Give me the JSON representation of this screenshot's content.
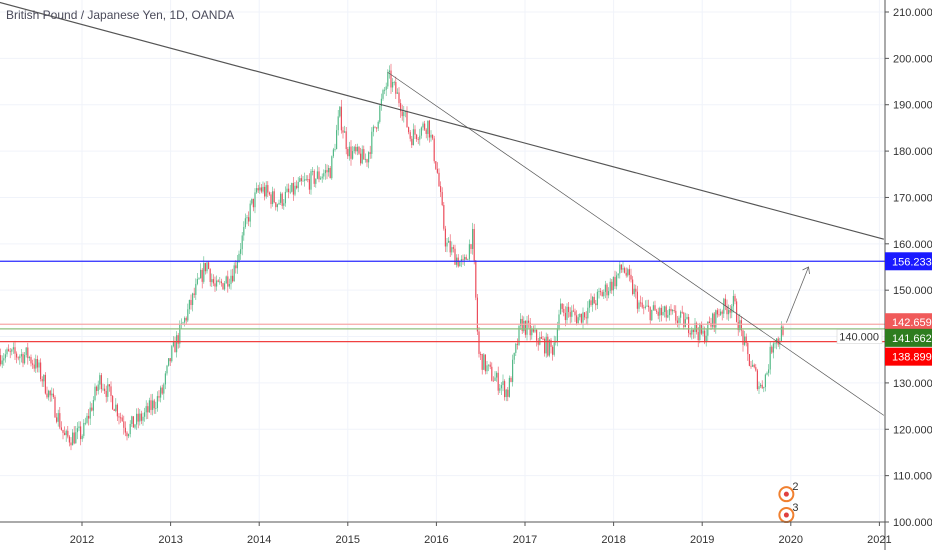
{
  "header": {
    "title": "British Pound / Japanese Yen, 1D, OANDA"
  },
  "chart_data": {
    "type": "candlestick",
    "title": "British Pound / Japanese Yen, 1D, OANDA",
    "ylim": [
      100,
      212
    ],
    "xlim": [
      2011.38,
      2021.05
    ],
    "y_ticks": [
      "100.000",
      "110.000",
      "120.000",
      "130.000",
      "140.000",
      "150.000",
      "160.000",
      "170.000",
      "180.000",
      "190.000",
      "200.000",
      "210.000"
    ],
    "x_ticks": [
      "2012",
      "2013",
      "2014",
      "2015",
      "2016",
      "2017",
      "2018",
      "2019",
      "2020",
      "2021"
    ],
    "grid": true,
    "approx_closes": [
      [
        2011.38,
        136
      ],
      [
        2011.5,
        133
      ],
      [
        2011.7,
        124
      ],
      [
        2011.8,
        118
      ],
      [
        2012.0,
        119
      ],
      [
        2012.2,
        131
      ],
      [
        2012.4,
        124
      ],
      [
        2012.5,
        120
      ],
      [
        2012.7,
        123
      ],
      [
        2012.9,
        128
      ],
      [
        2013.0,
        136
      ],
      [
        2013.2,
        146
      ],
      [
        2013.4,
        156
      ],
      [
        2013.5,
        150
      ],
      [
        2013.7,
        154
      ],
      [
        2013.9,
        168
      ],
      [
        2014.0,
        172
      ],
      [
        2014.2,
        169
      ],
      [
        2014.5,
        173
      ],
      [
        2014.8,
        176
      ],
      [
        2014.9,
        188
      ],
      [
        2015.0,
        180
      ],
      [
        2015.2,
        178
      ],
      [
        2015.45,
        196
      ],
      [
        2015.6,
        190
      ],
      [
        2015.7,
        183
      ],
      [
        2015.9,
        186
      ],
      [
        2016.0,
        176
      ],
      [
        2016.1,
        160
      ],
      [
        2016.3,
        155
      ],
      [
        2016.4,
        162
      ],
      [
        2016.47,
        136
      ],
      [
        2016.6,
        132
      ],
      [
        2016.8,
        128
      ],
      [
        2016.95,
        143
      ],
      [
        2017.1,
        140
      ],
      [
        2017.3,
        137
      ],
      [
        2017.4,
        146
      ],
      [
        2017.6,
        144
      ],
      [
        2017.8,
        148
      ],
      [
        2018.0,
        152
      ],
      [
        2018.1,
        155
      ],
      [
        2018.3,
        146
      ],
      [
        2018.5,
        145
      ],
      [
        2018.7,
        144
      ],
      [
        2018.9,
        142
      ],
      [
        2019.0,
        140
      ],
      [
        2019.2,
        146
      ],
      [
        2019.35,
        147
      ],
      [
        2019.5,
        136
      ],
      [
        2019.65,
        129
      ],
      [
        2019.72,
        132
      ],
      [
        2019.8,
        140
      ],
      [
        2019.85,
        139
      ],
      [
        2019.92,
        142.7
      ]
    ],
    "horizontal_levels": [
      {
        "label": "156.233",
        "value": 156.233,
        "color": "#2a2aff",
        "label_bg": "#1a1aff"
      },
      {
        "label": "142.659",
        "value": 142.659,
        "color": "#f7a8a8",
        "label_bg": "#f05a5a"
      },
      {
        "label": "141.662",
        "value": 141.662,
        "color": "#8fbf7f",
        "label_bg": "#2e7d1f"
      },
      {
        "label": "138.899",
        "value": 138.899,
        "color": "#f04040",
        "label_bg": "#ff0000"
      }
    ],
    "trendlines": [
      {
        "from": [
          2010.3,
          216
        ],
        "to": [
          2021.05,
          161
        ]
      },
      {
        "from": [
          2015.45,
          197
        ],
        "to": [
          2021.05,
          123
        ]
      }
    ],
    "projection_arrow": {
      "from": [
        2019.95,
        143
      ],
      "to": [
        2020.2,
        155
      ]
    },
    "up_color": "#53b987",
    "down_color": "#eb4d5c",
    "events": [
      {
        "label": "2",
        "x": 2019.95,
        "value": 106
      },
      {
        "label": "3",
        "x": 2019.95,
        "value": 101.5
      }
    ]
  }
}
